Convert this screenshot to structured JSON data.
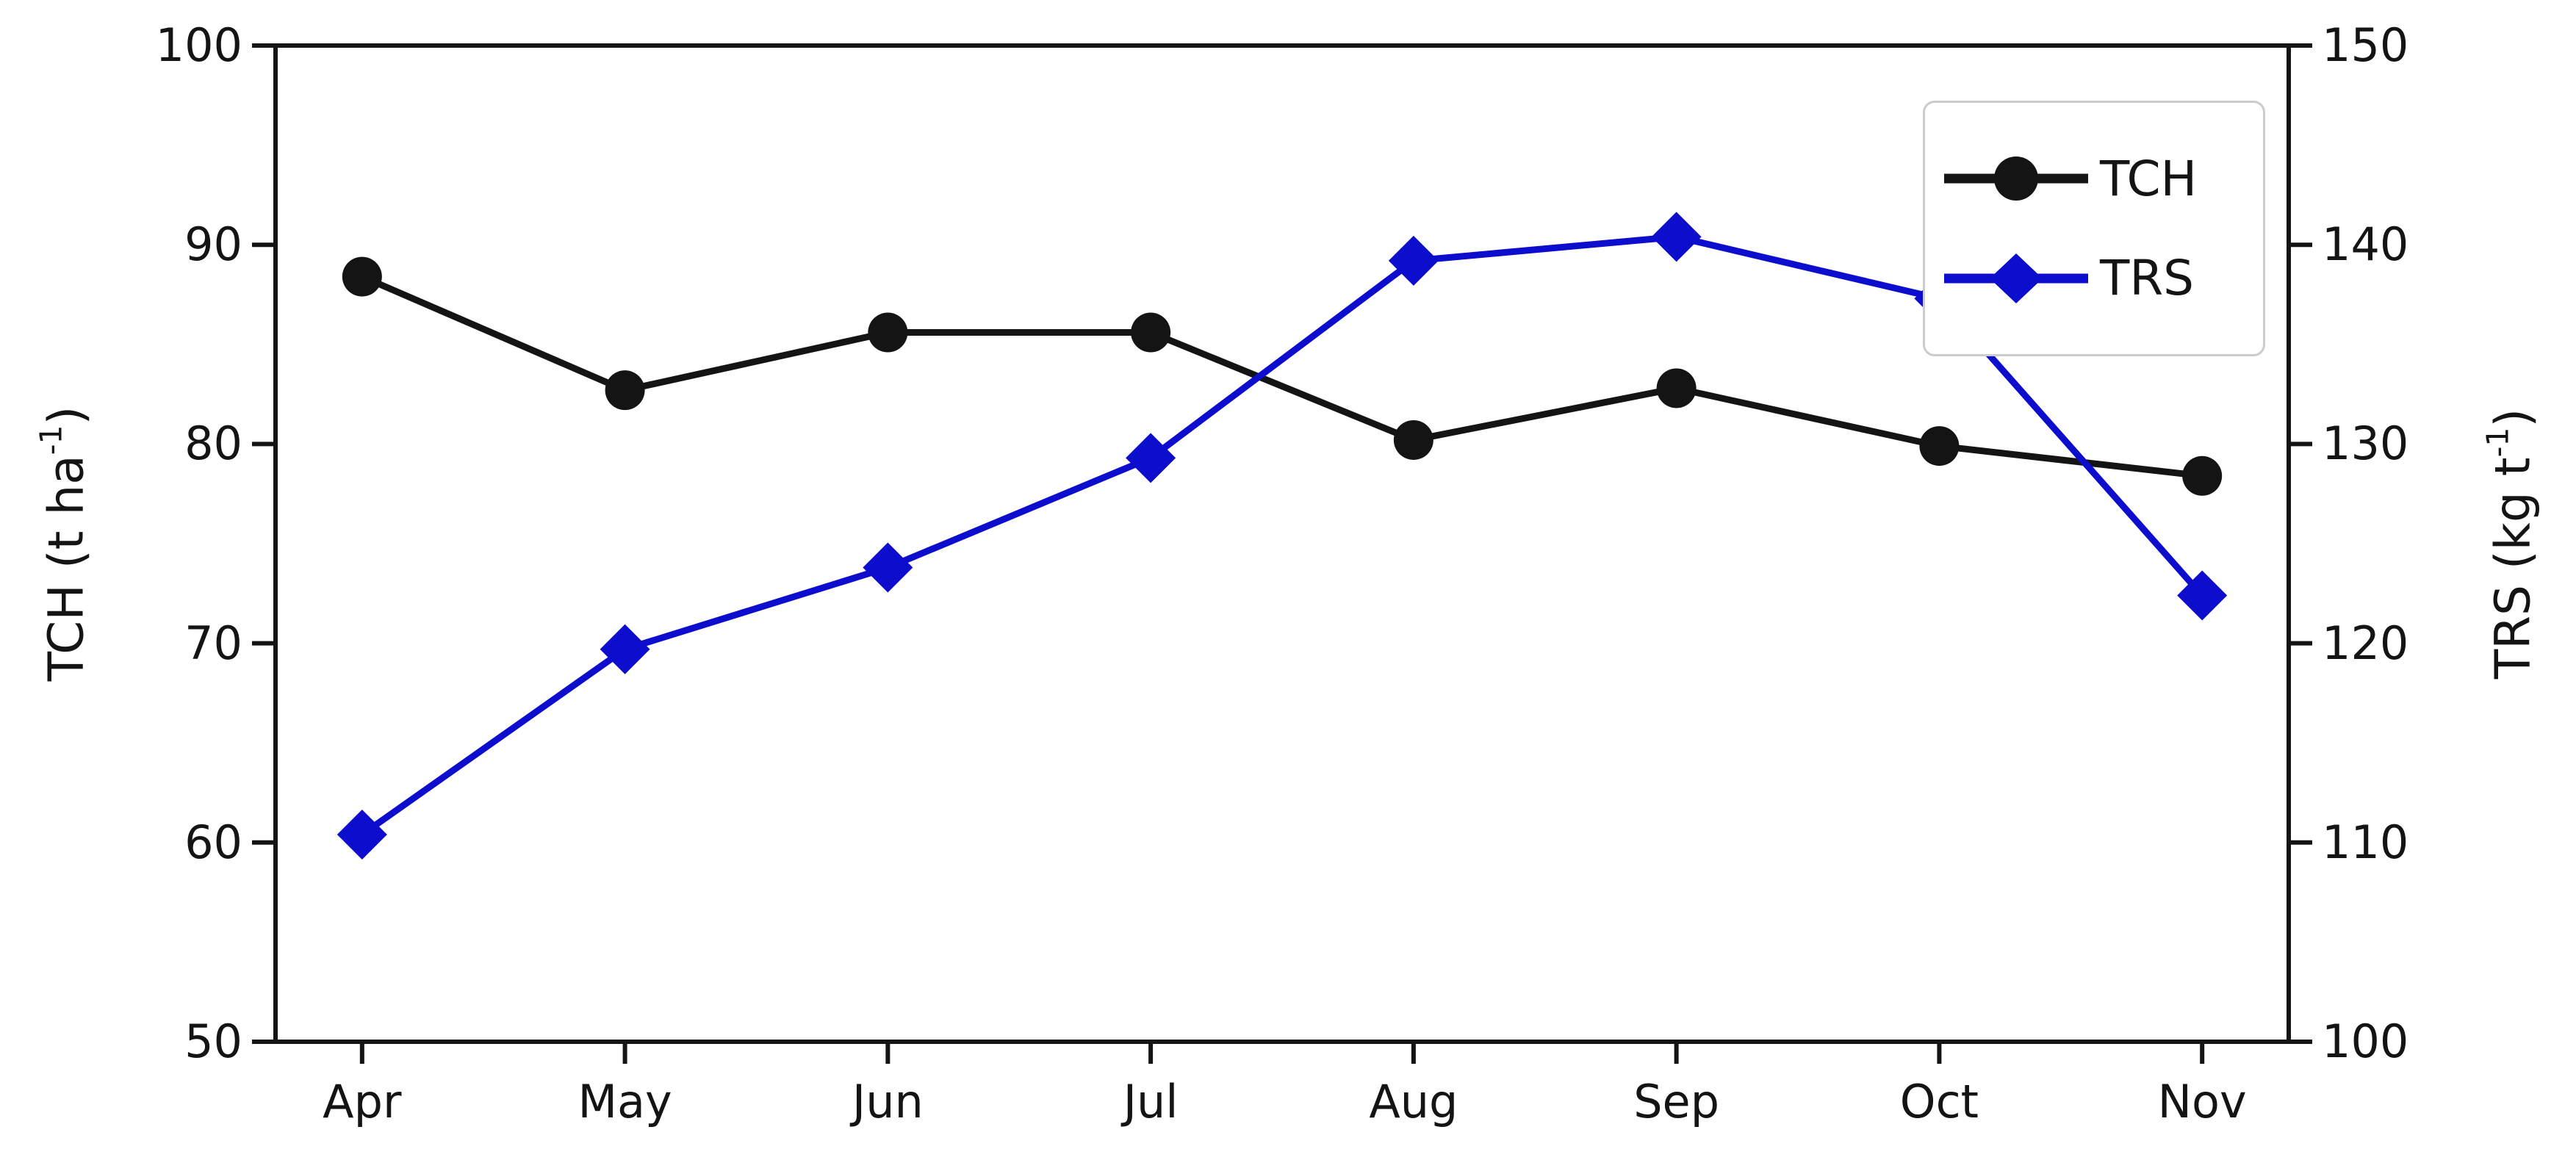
{
  "chart_data": {
    "type": "line",
    "title": "",
    "categories": [
      "Apr",
      "May",
      "Jun",
      "Jul",
      "Aug",
      "Sep",
      "Oct",
      "Nov"
    ],
    "series": [
      {
        "name": "TCH",
        "axis": "left",
        "color": "#141414",
        "marker": "circle",
        "values": [
          88.4,
          82.7,
          85.6,
          85.6,
          80.2,
          82.8,
          79.9,
          78.4
        ]
      },
      {
        "name": "TRS",
        "axis": "right",
        "color": "#0d0dcd",
        "marker": "diamond",
        "values": [
          110.4,
          119.7,
          123.8,
          129.3,
          139.2,
          140.4,
          137.3,
          122.4
        ]
      }
    ],
    "axes": {
      "left": {
        "label": "TCH (t ha⁻¹)",
        "label_prefix": "TCH (t ha",
        "label_sup": "-1",
        "label_suffix": ")",
        "ticks": [
          50,
          60,
          70,
          80,
          90,
          100
        ],
        "range": [
          50,
          100
        ]
      },
      "right": {
        "label": "TRS (kg t⁻¹)",
        "label_prefix": "TRS (kg t",
        "label_sup": "-1",
        "label_suffix": ")",
        "ticks": [
          100,
          110,
          120,
          130,
          140,
          150
        ],
        "range": [
          100,
          150
        ]
      },
      "x": {
        "ticks": [
          "Apr",
          "May",
          "Jun",
          "Jul",
          "Aug",
          "Sep",
          "Oct",
          "Nov"
        ]
      }
    },
    "legend": {
      "position": "top-right",
      "entries": [
        {
          "label": "TCH"
        },
        {
          "label": "TRS"
        }
      ]
    },
    "grid": false,
    "background": "#ffffff"
  }
}
